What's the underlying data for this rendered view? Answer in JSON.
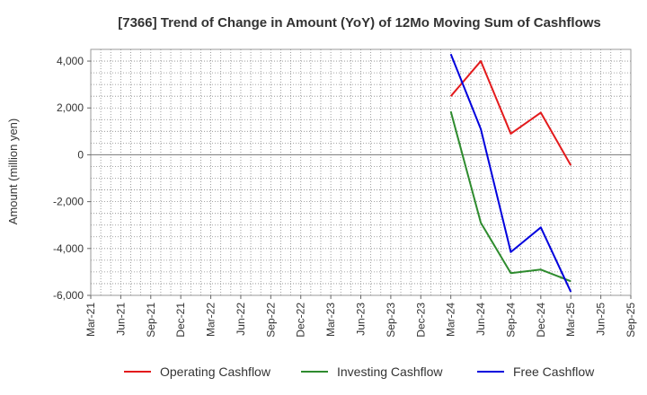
{
  "chart_data": {
    "type": "line",
    "title": "[7366]  Trend of Change in Amount (YoY) of 12Mo Moving Sum of Cashflows",
    "ylabel": "Amount (million yen)",
    "xlabel": "",
    "categories": [
      "Mar-21",
      "Jun-21",
      "Sep-21",
      "Dec-21",
      "Mar-22",
      "Jun-22",
      "Sep-22",
      "Dec-22",
      "Mar-23",
      "Jun-23",
      "Sep-23",
      "Dec-23",
      "Mar-24",
      "Jun-24",
      "Sep-24",
      "Dec-24",
      "Mar-25",
      "Jun-25",
      "Sep-25"
    ],
    "ylim": [
      -6000,
      4500
    ],
    "yticks": [
      4000,
      2000,
      0,
      -2000,
      -4000,
      -6000
    ],
    "ytick_labels": [
      "4,000",
      "2,000",
      "0",
      "-2,000",
      "-4,000",
      "-6,000"
    ],
    "grid": true,
    "legend_position": "bottom",
    "series": [
      {
        "name": "Operating Cashflow",
        "color": "#e31a1c",
        "values": [
          null,
          null,
          null,
          null,
          null,
          null,
          null,
          null,
          null,
          null,
          null,
          null,
          2500,
          4000,
          900,
          1800,
          -450,
          null,
          null
        ]
      },
      {
        "name": "Investing Cashflow",
        "color": "#2e8b2e",
        "values": [
          null,
          null,
          null,
          null,
          null,
          null,
          null,
          null,
          null,
          null,
          null,
          null,
          1850,
          -2900,
          -5050,
          -4900,
          -5400,
          null,
          null
        ]
      },
      {
        "name": "Free Cashflow",
        "color": "#0000dd",
        "values": [
          null,
          null,
          null,
          null,
          null,
          null,
          null,
          null,
          null,
          null,
          null,
          null,
          4300,
          1100,
          -4150,
          -3100,
          -5850,
          null,
          null
        ]
      }
    ]
  }
}
